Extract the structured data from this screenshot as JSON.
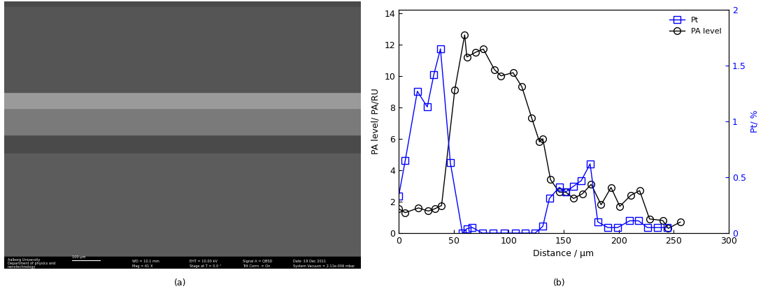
{
  "image_panel": {
    "label": "(a)",
    "info_bar": {
      "institution": [
        "Aalborg University",
        "Department of physics and",
        "nanotechnology"
      ],
      "scale_bar": "100 µm",
      "fields": [
        "WD = 10.1 mm",
        "Mag = 61 X",
        "EHT = 10.00 kV",
        "Stage at T = 0.0 °",
        "Signal A = QBSD",
        "Tilt Corrn. = On",
        "Date :19 Dec 2011",
        "System Vacuum = 2.11e-006 mbar"
      ]
    }
  },
  "chart_data": {
    "type": "line",
    "panel_label": "(b)",
    "x_label": "Distance / µm",
    "y_label": "PA level/ PA/RU",
    "y2_label": "Pt/ %",
    "xlim": [
      0,
      300
    ],
    "xticks": [
      0,
      50,
      100,
      150,
      200,
      250,
      300
    ],
    "ylim": [
      0,
      14.2
    ],
    "yticks": [
      0,
      2,
      4,
      6,
      8,
      10,
      12,
      14
    ],
    "y2lim": [
      0,
      2
    ],
    "y2ticks": [
      0,
      0.5,
      1,
      1.5,
      2
    ],
    "legend": "upper right",
    "grid": false,
    "series": [
      {
        "name": "Pt",
        "color": "#0000ff",
        "marker": "square",
        "line_style": "solid",
        "axis": "y2",
        "x": [
          0,
          6,
          17,
          26,
          32,
          38,
          47,
          58,
          62,
          67,
          76,
          86,
          96,
          106,
          115,
          124,
          131,
          137,
          146,
          152,
          159,
          166,
          174,
          181,
          190,
          199,
          210,
          218,
          226,
          235,
          244
        ],
        "values": [
          0.33,
          0.65,
          1.27,
          1.13,
          1.42,
          1.65,
          0.63,
          0.0,
          0.04,
          0.05,
          0.0,
          0.0,
          0.0,
          0.0,
          0.0,
          0.0,
          0.06,
          0.31,
          0.41,
          0.37,
          0.42,
          0.47,
          0.62,
          0.1,
          0.05,
          0.05,
          0.11,
          0.11,
          0.05,
          0.05,
          0.05
        ]
      },
      {
        "name": "PA level",
        "color": "#000000",
        "marker": "circle",
        "line_style": "solid",
        "x": [
          0,
          6,
          18,
          27,
          33,
          39,
          51,
          60,
          62,
          70,
          77,
          87,
          93,
          104,
          112,
          121,
          128,
          131,
          138,
          146,
          152,
          159,
          167,
          175,
          184,
          193,
          201,
          211,
          219,
          228,
          240,
          245,
          256
        ],
        "values": [
          1.55,
          1.3,
          1.6,
          1.4,
          1.55,
          1.75,
          9.1,
          12.6,
          11.2,
          11.5,
          11.7,
          10.4,
          10.0,
          10.2,
          9.3,
          7.3,
          5.8,
          6.0,
          3.4,
          2.6,
          2.6,
          2.2,
          2.5,
          3.1,
          1.8,
          2.9,
          1.7,
          2.4,
          2.7,
          0.9,
          0.8,
          0.3,
          0.7
        ]
      }
    ]
  }
}
